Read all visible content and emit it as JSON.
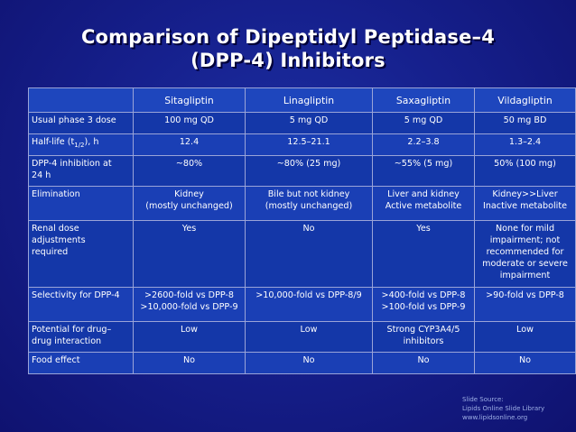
{
  "title": {
    "line1": "Comparison of Dipeptidyl Peptidase–4",
    "line2": "(DPP-4) Inhibitors"
  },
  "table": {
    "columns": [
      "Sitagliptin",
      "Linagliptin",
      "Saxagliptin",
      "Vildagliptin"
    ],
    "rows": [
      {
        "label": [
          "Usual phase 3 dose"
        ],
        "cells": [
          [
            "100 mg QD"
          ],
          [
            "5 mg QD"
          ],
          [
            "5 mg QD"
          ],
          [
            "50 mg BD"
          ]
        ]
      },
      {
        "label_prefix": "Half-life (t",
        "label_sub": "1/2",
        "label_suffix": "), h",
        "cells": [
          [
            "12.4"
          ],
          [
            "12.5–21.1"
          ],
          [
            "2.2–3.8"
          ],
          [
            "1.3–2.4"
          ]
        ]
      },
      {
        "label": [
          "DPP-4 inhibition at",
          "24 h"
        ],
        "cells": [
          [
            "~80%"
          ],
          [
            "~80% (25 mg)"
          ],
          [
            "~55% (5 mg)"
          ],
          [
            "50% (100 mg)"
          ]
        ]
      },
      {
        "label": [
          "Elimination"
        ],
        "cells": [
          [
            "Kidney",
            "(mostly unchanged)"
          ],
          [
            "Bile but not kidney",
            "(mostly unchanged)"
          ],
          [
            "Liver and kidney",
            "Active metabolite"
          ],
          [
            "Kidney>>Liver",
            "Inactive metabolite"
          ]
        ]
      },
      {
        "label": [
          "Renal dose",
          "adjustments",
          "required"
        ],
        "cells": [
          [
            "Yes"
          ],
          [
            "No"
          ],
          [
            "Yes"
          ],
          [
            "None for mild",
            "impairment; not",
            "recommended for",
            "moderate or severe",
            "impairment"
          ]
        ]
      },
      {
        "label": [
          "Selectivity for DPP-4"
        ],
        "cells": [
          [
            ">2600-fold vs DPP-8",
            ">10,000-fold vs DPP-9"
          ],
          [
            ">10,000-fold vs DPP-8/9"
          ],
          [
            ">400-fold vs DPP-8",
            ">100-fold vs DPP-9"
          ],
          [
            ">90-fold  vs DPP-8"
          ]
        ]
      },
      {
        "label": [
          "Potential for drug–",
          "drug interaction"
        ],
        "cells": [
          [
            "Low"
          ],
          [
            "Low"
          ],
          [
            "Strong CYP3A4/5",
            "inhibitors"
          ],
          [
            "Low"
          ]
        ]
      },
      {
        "label": [
          "Food effect"
        ],
        "cells": [
          [
            "No"
          ],
          [
            "No"
          ],
          [
            "No"
          ],
          [
            "No"
          ]
        ]
      }
    ]
  },
  "source": {
    "line1": "Slide Source:",
    "line2": "Lipids Online Slide Library",
    "line3": "www.lipidsonline.org"
  }
}
